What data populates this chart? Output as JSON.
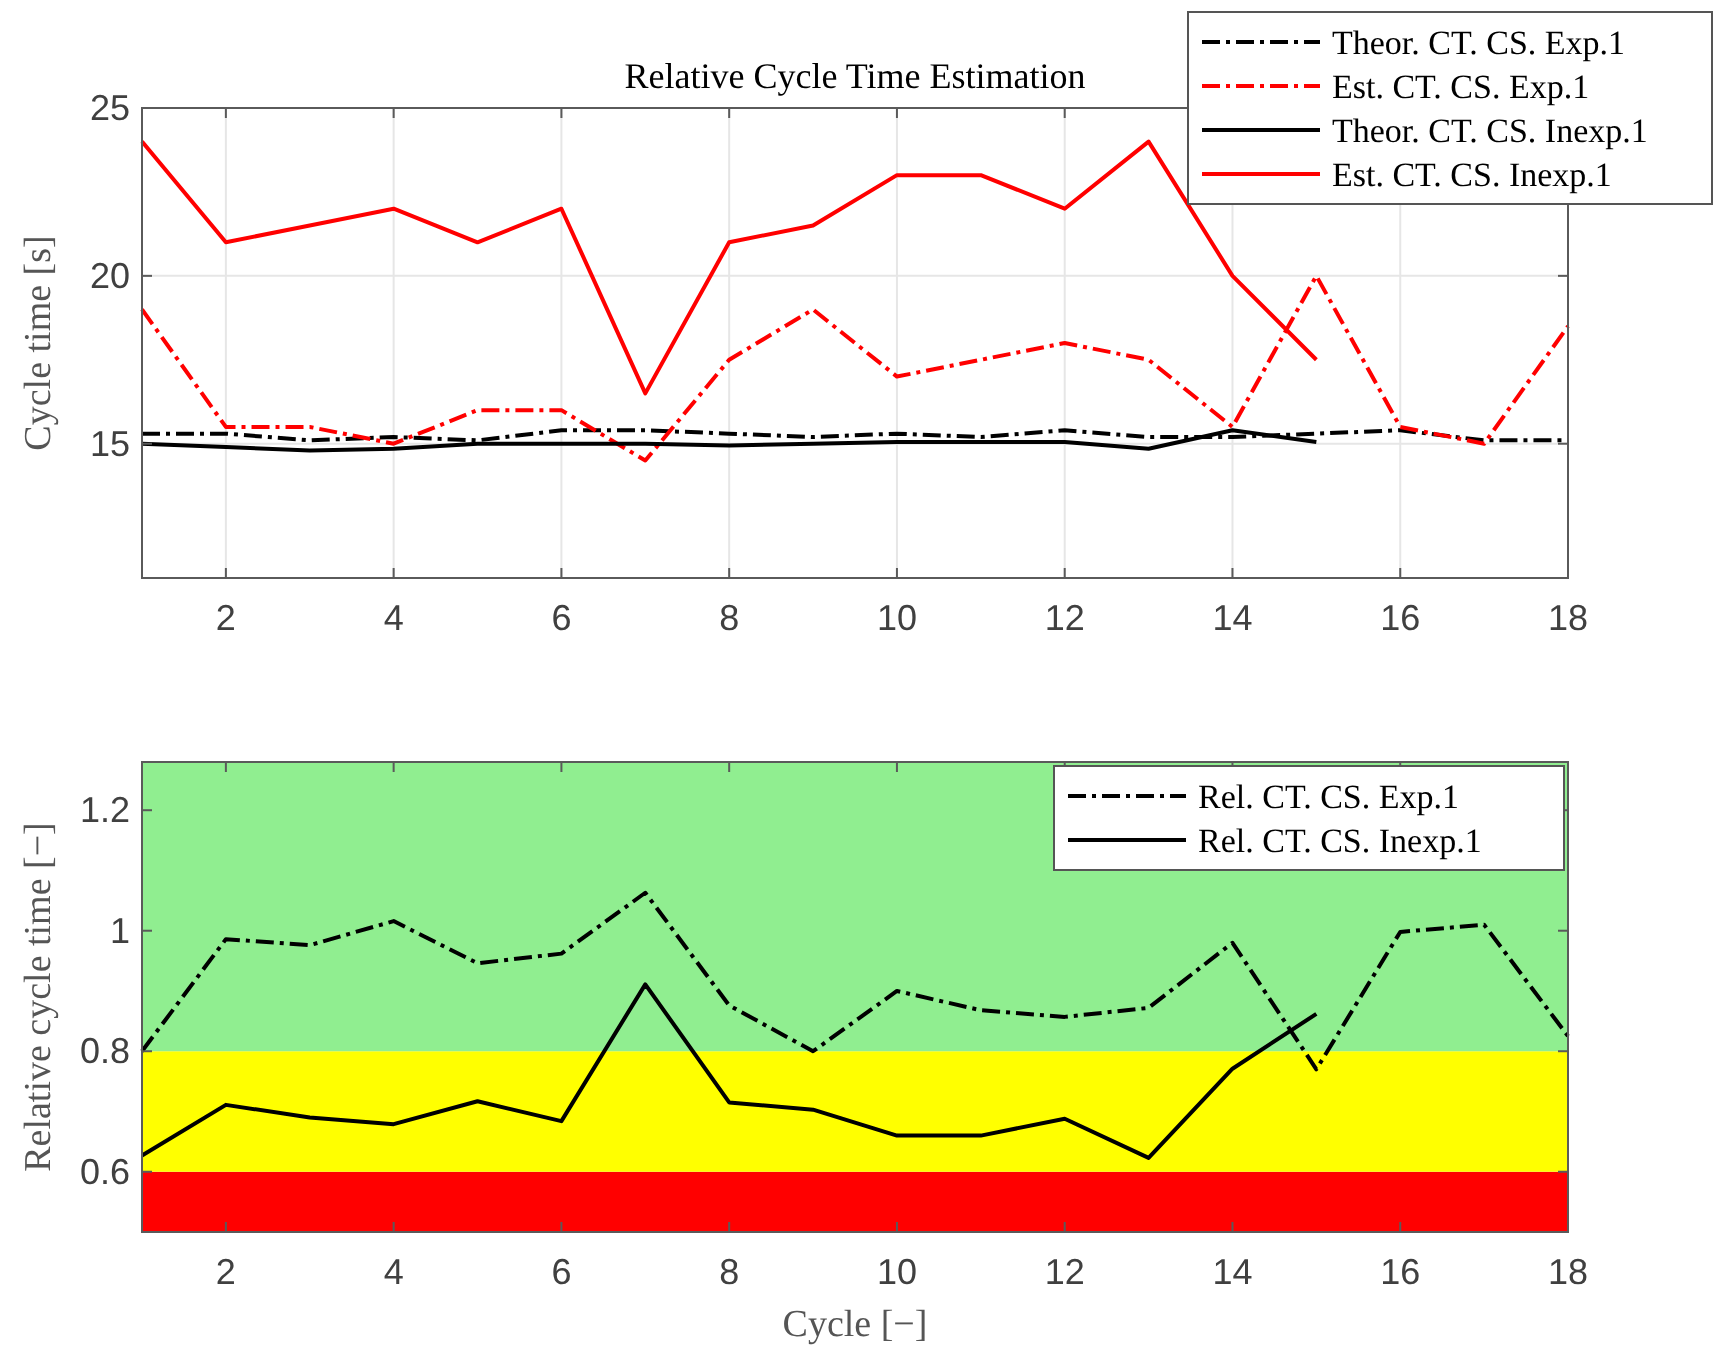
{
  "chart_data": [
    {
      "type": "line",
      "title": "Relative Cycle Time Estimation",
      "ylabel": "Cycle time [s]",
      "x": [
        1,
        2,
        3,
        4,
        5,
        6,
        7,
        8,
        9,
        10,
        11,
        12,
        13,
        14,
        15,
        16,
        17,
        18
      ],
      "xlim": [
        1,
        18
      ],
      "xticks": [
        2,
        4,
        6,
        8,
        10,
        12,
        14,
        16,
        18
      ],
      "ylim": [
        11,
        25
      ],
      "yticks": [
        15,
        20,
        25
      ],
      "grid": true,
      "legend": "top right",
      "series": [
        {
          "name": "Theor. CT. CS. Exp.1",
          "color": "#000000",
          "line_style": "dashed",
          "values": [
            15.3,
            15.3,
            15.1,
            15.2,
            15.1,
            15.4,
            15.4,
            15.3,
            15.2,
            15.3,
            15.2,
            15.4,
            15.2,
            15.2,
            15.3,
            15.4,
            15.1,
            15.1
          ]
        },
        {
          "name": "Est. CT. CS. Exp.1",
          "color": "#ff0000",
          "line_style": "dashed",
          "values": [
            19,
            15.5,
            15.5,
            15,
            16,
            16,
            14.5,
            17.5,
            19,
            17,
            17.5,
            18,
            17.5,
            15.5,
            20,
            15.5,
            15,
            18.5
          ]
        },
        {
          "name": "Theor. CT. CS. Inexp.1",
          "color": "#000000",
          "line_style": "solid",
          "values": [
            15,
            14.9,
            14.8,
            14.85,
            15,
            15,
            15,
            14.95,
            15,
            15.05,
            15.05,
            15.05,
            14.85,
            15.4,
            15.05,
            null,
            null,
            null
          ]
        },
        {
          "name": "Est. CT. CS. Inexp.1",
          "color": "#ff0000",
          "line_style": "solid",
          "values": [
            24,
            21,
            21.5,
            22,
            21,
            22,
            16.5,
            21,
            21.5,
            23,
            23,
            22,
            24,
            20,
            17.5,
            null,
            null,
            null
          ]
        }
      ]
    },
    {
      "type": "line",
      "xlabel": "Cycle [−]",
      "ylabel": "Relative cycle time [−]",
      "x": [
        1,
        2,
        3,
        4,
        5,
        6,
        7,
        8,
        9,
        10,
        11,
        12,
        13,
        14,
        15,
        16,
        17,
        18
      ],
      "xlim": [
        1,
        18
      ],
      "xticks": [
        2,
        4,
        6,
        8,
        10,
        12,
        14,
        16,
        18
      ],
      "ylim": [
        0.5,
        1.28
      ],
      "yticks": [
        0.6,
        0.8,
        1,
        1.2
      ],
      "legend": "top right",
      "bands": [
        {
          "axis": "y",
          "from": 0.5,
          "to": 0.6,
          "color": "#ff0000"
        },
        {
          "axis": "y",
          "from": 0.6,
          "to": 0.8,
          "color": "#ffff00"
        },
        {
          "axis": "y",
          "from": 0.8,
          "to": 1.28,
          "color": "#90ee90"
        }
      ],
      "series": [
        {
          "name": "Rel. CT. CS. Exp.1",
          "color": "#000000",
          "line_style": "dashed",
          "values": [
            0.8,
            0.986,
            0.976,
            1.016,
            0.946,
            0.962,
            1.063,
            0.876,
            0.8,
            0.9,
            0.868,
            0.857,
            0.872,
            0.98,
            0.77,
            0.998,
            1.01,
            0.825
          ]
        },
        {
          "name": "Rel. CT. CS. Inexp.1",
          "color": "#000000",
          "line_style": "solid",
          "values": [
            0.627,
            0.711,
            0.69,
            0.679,
            0.717,
            0.684,
            0.911,
            0.715,
            0.703,
            0.66,
            0.66,
            0.688,
            0.623,
            0.771,
            0.862,
            null,
            null,
            null
          ]
        }
      ]
    }
  ]
}
